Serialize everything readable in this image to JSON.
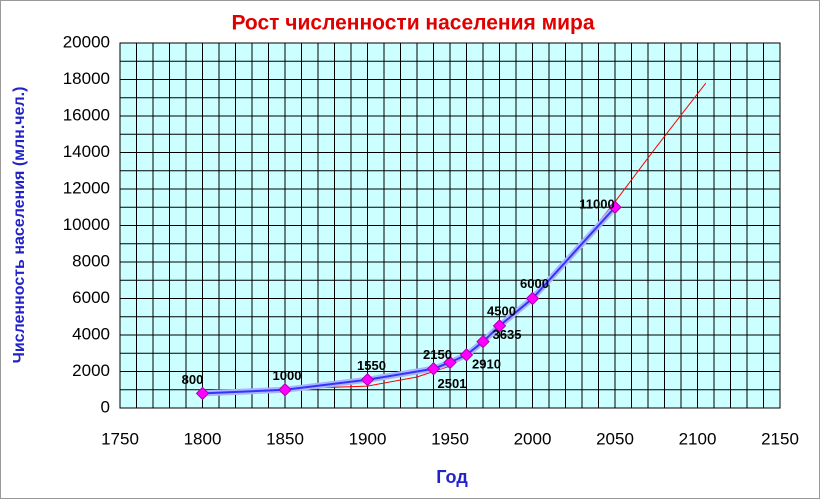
{
  "chart_data": {
    "type": "line",
    "title": "Рост численности населения мира",
    "x_label": "Год",
    "y_label": "Численность населения (млн.чел.)",
    "x": [
      1800,
      1850,
      1900,
      1940,
      1950,
      1960,
      1970,
      1980,
      2000,
      2050
    ],
    "series": [
      {
        "color": "#3333ff",
        "marker_color": "#ff00ff",
        "values": [
          800,
          1000,
          1550,
          2150,
          2501,
          2910,
          3635,
          4500,
          6000,
          11000
        ],
        "data_labels": true
      },
      {
        "color": "#ff0000",
        "x": [
          1800,
          1850,
          1900,
          1930,
          1950,
          1970,
          2000,
          2025,
          2050,
          2075,
          2105
        ],
        "values": [
          700,
          1050,
          1200,
          1700,
          2300,
          3800,
          6100,
          8500,
          11300,
          14300,
          17800
        ],
        "data_labels": false
      }
    ],
    "xlim": [
      1750,
      2150
    ],
    "xticks": [
      1750,
      1800,
      1850,
      1900,
      1950,
      2000,
      2050,
      2100,
      2150
    ],
    "ylim": [
      0,
      20000
    ],
    "yticks": [
      0,
      2000,
      4000,
      6000,
      8000,
      10000,
      12000,
      14000,
      16000,
      18000,
      20000
    ],
    "grid": true,
    "background": "#ccffff"
  }
}
